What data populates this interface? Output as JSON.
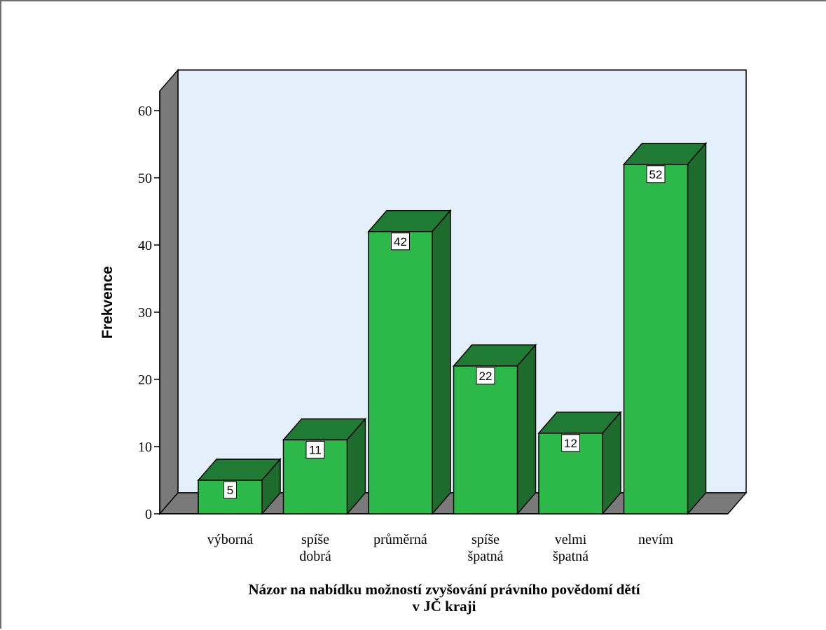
{
  "chart_data": {
    "type": "bar",
    "style": "3d",
    "categories": [
      [
        "výborná"
      ],
      [
        "spíše",
        "dobrá"
      ],
      [
        "průměrná"
      ],
      [
        "spíše",
        "špatná"
      ],
      [
        "velmi",
        "špatná"
      ],
      [
        "nevím"
      ]
    ],
    "values": [
      5,
      11,
      42,
      22,
      12,
      52
    ],
    "value_labels": [
      "5",
      "11",
      "42",
      "22",
      "12",
      "52"
    ],
    "ylabel": "Frekvence",
    "xlabel": [
      "Názor na nabídku možností zvyšování právního povědomí dětí",
      "v JČ kraji"
    ],
    "ylim": [
      0,
      60
    ],
    "yticks": [
      0,
      10,
      20,
      30,
      40,
      50,
      60
    ],
    "grid": false,
    "colors": {
      "bar_front": "#2db84a",
      "bar_top": "#1f7a33",
      "bar_side": "#1e6c2d",
      "plot_back": "#e3effb",
      "walls": "#7a7a7a"
    }
  }
}
